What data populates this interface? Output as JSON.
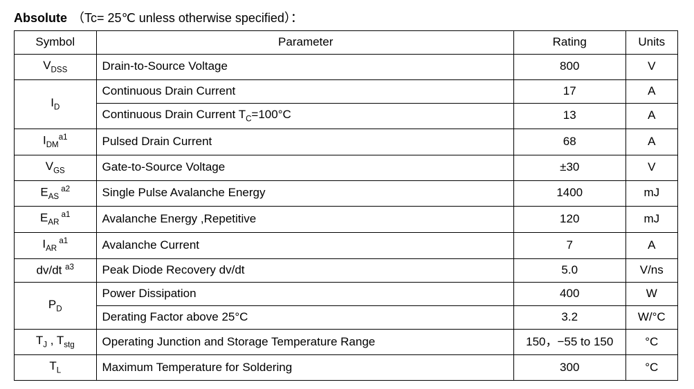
{
  "heading": {
    "title": "Absolute",
    "condition_open": "（",
    "condition_var": "Tc",
    "condition_eq": "= 25℃  unless otherwise specified",
    "condition_close": "）："
  },
  "columns": {
    "symbol": "Symbol",
    "parameter": "Parameter",
    "rating": "Rating",
    "units": "Units"
  },
  "rows": {
    "vdss": {
      "sym_main": "V",
      "sym_sub": "DSS",
      "sym_sup": "",
      "param": "Drain-to-Source Voltage",
      "rating": "800",
      "units": "V"
    },
    "id1": {
      "sym_main": "I",
      "sym_sub": "D",
      "sym_sup": "",
      "param": "Continuous Drain Current",
      "rating": "17",
      "units": "A"
    },
    "id2": {
      "param_pre": "Continuous Drain Current T",
      "param_sub": "C",
      "param_post": "=100°C",
      "rating": "13",
      "units": "A"
    },
    "idm": {
      "sym_main": "I",
      "sym_sub": "DM",
      "sym_sup": "a1",
      "param": "Pulsed Drain Current",
      "rating": "68",
      "units": "A"
    },
    "vgs": {
      "sym_main": "V",
      "sym_sub": "GS",
      "sym_sup": "",
      "param": "Gate-to-Source Voltage",
      "rating": "±30",
      "units": "V"
    },
    "eas": {
      "sym_main": "E",
      "sym_sub": "AS",
      "sym_sup": " a2",
      "param": "Single Pulse Avalanche Energy",
      "rating": "1400",
      "units": "mJ"
    },
    "ear": {
      "sym_main": "E",
      "sym_sub": "AR",
      "sym_sup": " a1",
      "param": "Avalanche Energy ,Repetitive",
      "rating": "120",
      "units": "mJ"
    },
    "iar": {
      "sym_main": "I",
      "sym_sub": "AR",
      "sym_sup": " a1",
      "param": "Avalanche Current",
      "rating": "7",
      "units": "A"
    },
    "dvdt": {
      "sym_plain": "dv/dt ",
      "sym_sup": "a3",
      "param": "Peak Diode Recovery dv/dt",
      "rating": "5.0",
      "units": "V/ns"
    },
    "pd1": {
      "sym_main": "P",
      "sym_sub": "D",
      "sym_sup": "",
      "param": "Power Dissipation",
      "rating": "400",
      "units": "W"
    },
    "pd2": {
      "param": "Derating Factor above 25°C",
      "rating": "3.2",
      "units": "W/°C"
    },
    "tj": {
      "sym1_main": "T",
      "sym1_sub": "J",
      "sep": " , ",
      "sym2_main": "T",
      "sym2_sub": "stg",
      "param": "Operating Junction and Storage Temperature Range",
      "rating": "150，−55 to 150",
      "units": "°C"
    },
    "tl": {
      "sym_main": "T",
      "sym_sub": "L",
      "sym_sup": "",
      "param": "Maximum Temperature for Soldering",
      "rating": "300",
      "units": "°C"
    }
  }
}
